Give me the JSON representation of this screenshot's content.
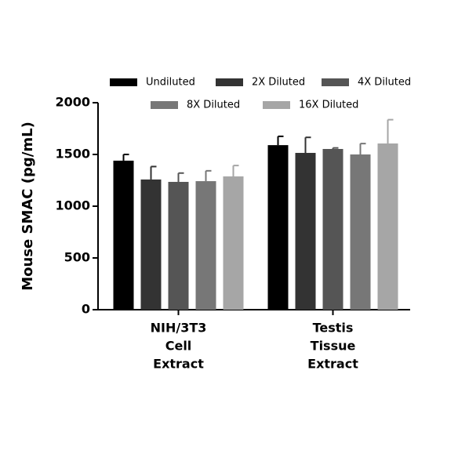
{
  "chart_data": {
    "type": "bar",
    "ylabel": "Mouse SMAC (pg/mL)",
    "categories": [
      [
        "NIH/3T3",
        "Cell",
        "Extract"
      ],
      [
        "Testis",
        "Tissue",
        "Extract"
      ]
    ],
    "series": [
      {
        "name": "Undiluted",
        "color": "#000000",
        "values": [
          1440,
          1590
        ],
        "errors": [
          60,
          85
        ]
      },
      {
        "name": "2X Diluted",
        "color": "#333333",
        "values": [
          1258,
          1515
        ],
        "errors": [
          125,
          150
        ]
      },
      {
        "name": "4X Diluted",
        "color": "#555555",
        "values": [
          1235,
          1553
        ],
        "errors": [
          85,
          10
        ]
      },
      {
        "name": "8X Diluted",
        "color": "#777777",
        "values": [
          1242,
          1500
        ],
        "errors": [
          100,
          105
        ]
      },
      {
        "name": "16X Diluted",
        "color": "#a6a6a6",
        "values": [
          1288,
          1606
        ],
        "errors": [
          105,
          230
        ]
      }
    ],
    "ylim": [
      0,
      2000
    ],
    "yticks": [
      0,
      500,
      1000,
      1500,
      2000
    ]
  }
}
